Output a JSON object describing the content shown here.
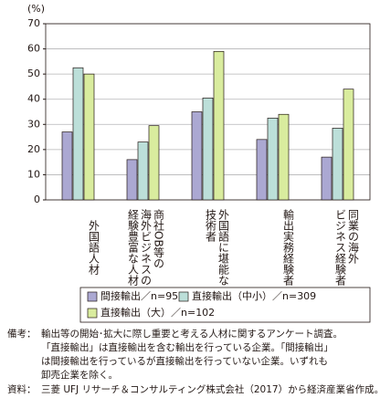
{
  "chart_data": {
    "type": "bar",
    "y_label": "(%)",
    "categories": [
      "外国語人材",
      "商社OB等の\n海外ビジネスの\n経験豊富な人材",
      "外国語に堪能な\n技術者",
      "輸出実務経験者",
      "同業の海外\nビジネス経験者"
    ],
    "series": [
      {
        "name": "間接輸出／n=95",
        "color": "#aba8d2",
        "values": [
          27,
          16,
          35,
          24,
          17
        ]
      },
      {
        "name": "直接輸出（中小）／n=309",
        "color": "#bcdfd9",
        "values": [
          52.5,
          23,
          40.5,
          32.5,
          28.5
        ]
      },
      {
        "name": "直接輸出（大）／n=102",
        "color": "#d9ec9e",
        "values": [
          50,
          29.5,
          59,
          34,
          44
        ]
      }
    ],
    "ylim": [
      0,
      70
    ],
    "yticks": [
      0,
      10,
      20,
      30,
      40,
      50,
      60,
      70
    ],
    "grid": true
  },
  "notes": {
    "label": "備考：",
    "lines": [
      "輸出等の開始･拡大に際し重要と考える人材に関するアンケート調査。",
      "「直接輸出」は直接輸出を含む輸出を行っている企業。「間接輸出」",
      "は間接輸出を行っているが直接輸出を行っていない企業。いずれも",
      "卸売企業を除く。"
    ]
  },
  "source": {
    "label": "資料：",
    "text": "三菱 UFJ リサーチ＆コンサルティング株式会社（2017）から経済産業省作成。"
  }
}
